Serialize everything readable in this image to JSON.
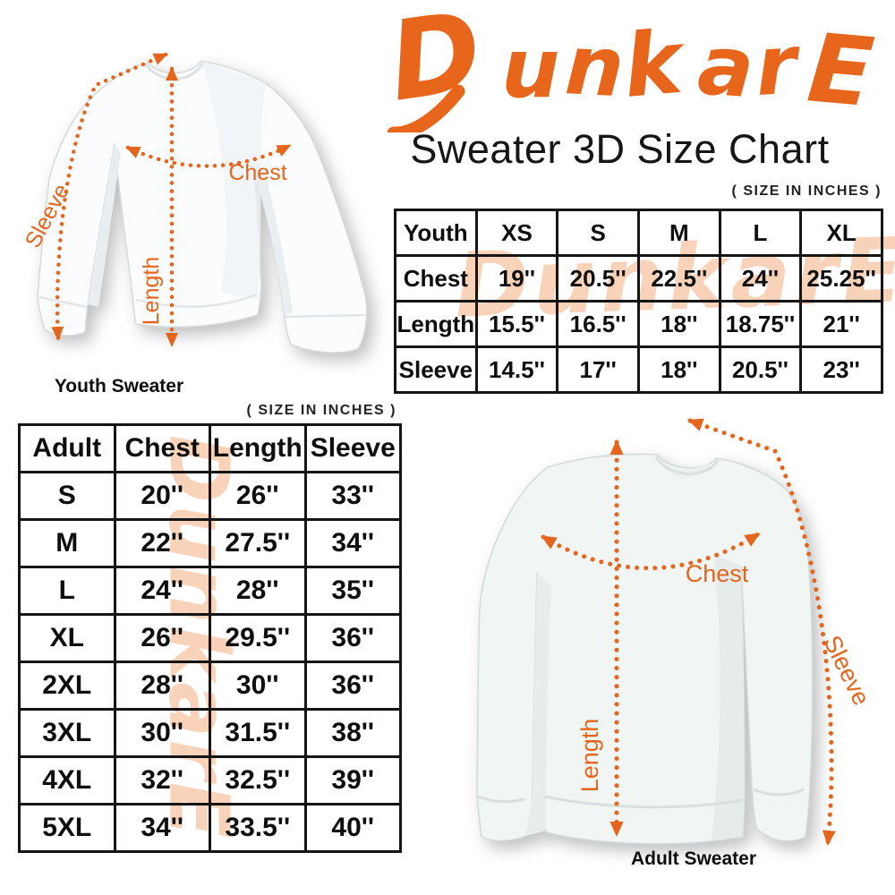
{
  "logo": "DunkarE",
  "title": "Sweater 3D Size Chart",
  "size_note": "( SIZE IN INCHES )",
  "watermark": "DunkarE",
  "youth": {
    "caption": "Youth Sweater",
    "measure_labels": {
      "chest": "Chest",
      "length": "Length",
      "sleeve": "Sleeve"
    },
    "table": {
      "columns": [
        "Youth",
        "XS",
        "S",
        "M",
        "L",
        "XL"
      ],
      "rows": [
        {
          "label": "Chest",
          "values": [
            "19''",
            "20.5''",
            "22.5''",
            "24''",
            "25.25''"
          ]
        },
        {
          "label": "Length",
          "values": [
            "15.5''",
            "16.5''",
            "18''",
            "18.75''",
            "21''"
          ]
        },
        {
          "label": "Sleeve",
          "values": [
            "14.5''",
            "17''",
            "18''",
            "20.5''",
            "23''"
          ]
        }
      ]
    }
  },
  "adult": {
    "caption": "Adult Sweater",
    "measure_labels": {
      "chest": "Chest",
      "length": "Length",
      "sleeve": "Sleeve"
    },
    "table": {
      "columns": [
        "Adult",
        "Chest",
        "Length",
        "Sleeve"
      ],
      "rows": [
        {
          "label": "S",
          "values": [
            "20''",
            "26''",
            "33''"
          ]
        },
        {
          "label": "M",
          "values": [
            "22''",
            "27.5''",
            "34''"
          ]
        },
        {
          "label": "L",
          "values": [
            "24''",
            "28''",
            "35''"
          ]
        },
        {
          "label": "XL",
          "values": [
            "26''",
            "29.5''",
            "36''"
          ]
        },
        {
          "label": "2XL",
          "values": [
            "28''",
            "30''",
            "36''"
          ]
        },
        {
          "label": "3XL",
          "values": [
            "30''",
            "31.5''",
            "38''"
          ]
        },
        {
          "label": "4XL",
          "values": [
            "32''",
            "32.5''",
            "39''"
          ]
        },
        {
          "label": "5XL",
          "values": [
            "34''",
            "33.5''",
            "40''"
          ]
        }
      ]
    }
  },
  "colors": {
    "accent_orange": "#E6651C",
    "logo_orange": "#E8661C",
    "watermark_peach": "#F2A878",
    "table_border": "#151515",
    "text": "#111111",
    "sweater_white": "#FBFCFD",
    "sweater_gray_white": "#F1F5F4"
  }
}
